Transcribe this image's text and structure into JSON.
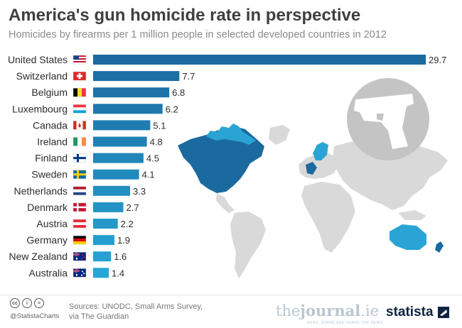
{
  "header": {
    "title": "America's gun homicide rate in perspective",
    "subtitle": "Homicides by firearms per 1 million people in selected developed countries in 2012"
  },
  "chart_data": {
    "type": "bar",
    "orientation": "horizontal",
    "title": "America's gun homicide rate in perspective",
    "subtitle": "Homicides by firearms per 1 million people in selected developed countries in 2012",
    "categories": [
      "United States",
      "Switzerland",
      "Belgium",
      "Luxembourg",
      "Canada",
      "Ireland",
      "Finland",
      "Sweden",
      "Netherlands",
      "Denmark",
      "Austria",
      "Germany",
      "New Zealand",
      "Australia"
    ],
    "values": [
      29.7,
      7.7,
      6.8,
      6.2,
      5.1,
      4.8,
      4.5,
      4.1,
      3.3,
      2.7,
      2.2,
      1.9,
      1.6,
      1.4
    ],
    "value_labels": [
      "29.7",
      "7.7",
      "6.8",
      "6.2",
      "5.1",
      "4.8",
      "4.5",
      "4.1",
      "3.3",
      "2.7",
      "2.2",
      "1.9",
      "1.6",
      "1.4"
    ],
    "flag_icons": [
      "us-flag-icon",
      "switzerland-flag-icon",
      "belgium-flag-icon",
      "luxembourg-flag-icon",
      "canada-flag-icon",
      "ireland-flag-icon",
      "finland-flag-icon",
      "sweden-flag-icon",
      "netherlands-flag-icon",
      "denmark-flag-icon",
      "austria-flag-icon",
      "germany-flag-icon",
      "new-zealand-flag-icon",
      "australia-flag-icon"
    ],
    "xlim": [
      0,
      29.7
    ],
    "grid": false,
    "colors": {
      "bar_dark": "#1b6a9f",
      "bar_light": "#27a6d6",
      "map_land": "#d9d9d9",
      "map_highlight_dark": "#1b6a9f",
      "map_highlight_light": "#2aa4d4",
      "gun_circle": "#c4c4c4",
      "gun_shape": "#ffffff"
    }
  },
  "decor": {
    "background_map": "world-map",
    "gun_icon": "handgun-icon"
  },
  "footer": {
    "cc_icons": [
      "cc",
      "i",
      "="
    ],
    "handle": "@StatistaCharts",
    "sources_line1": "Sources: UNODC, Small Arms Survey,",
    "sources_line2": "via The Guardian",
    "journal_logo_part1": "the",
    "journal_logo_part2": "journal",
    "journal_logo_part3": ".ie",
    "journal_tagline": "READ, SHARE AND SHAPE THE NEWS",
    "statista_logo": "statista"
  }
}
